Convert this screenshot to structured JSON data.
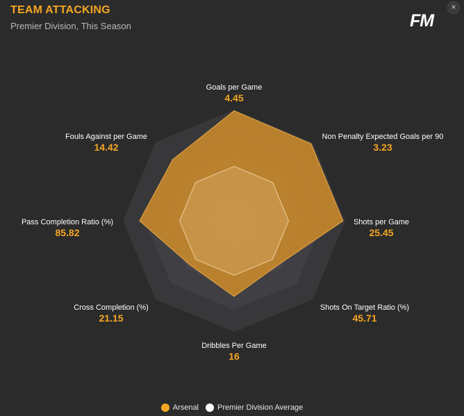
{
  "header": {
    "title": "TEAM ATTACKING",
    "subtitle": "Premier Division, This Season",
    "logo_text": "FM",
    "close_label": "×"
  },
  "colors": {
    "background": "#2b2b2b",
    "accent": "#f5a623",
    "arsenal_fill": "#c98a2b",
    "average_fill": "#f2d8a8",
    "label_text": "#ffffff",
    "value_text": "#f5a623"
  },
  "chart_data": {
    "type": "radar",
    "title": "TEAM ATTACKING",
    "subtitle": "Premier Division, This Season",
    "axes": [
      {
        "label": "Goals per Game",
        "value_label": "4.45"
      },
      {
        "label": "Non Penalty Expected Goals per 90",
        "value_label": "3.23"
      },
      {
        "label": "Shots per Game",
        "value_label": "25.45"
      },
      {
        "label": "Shots On Target Ratio (%)",
        "value_label": "45.71"
      },
      {
        "label": "Dribbles Per Game",
        "value_label": "16"
      },
      {
        "label": "Cross Completion (%)",
        "value_label": "21.15"
      },
      {
        "label": "Pass Completion Ratio (%)",
        "value_label": "85.82"
      },
      {
        "label": "Fouls Against per Game",
        "value_label": "14.42"
      }
    ],
    "series": [
      {
        "name": "Arsenal",
        "color": "#f5a623",
        "relative_values": [
          0.99,
          0.98,
          0.98,
          0.56,
          0.68,
          0.56,
          0.85,
          0.78
        ]
      },
      {
        "name": "Premier Division Average",
        "color": "#ffffff",
        "relative_values": [
          0.49,
          0.49,
          0.49,
          0.49,
          0.49,
          0.49,
          0.49,
          0.49
        ]
      }
    ],
    "legend_position": "bottom-center"
  }
}
